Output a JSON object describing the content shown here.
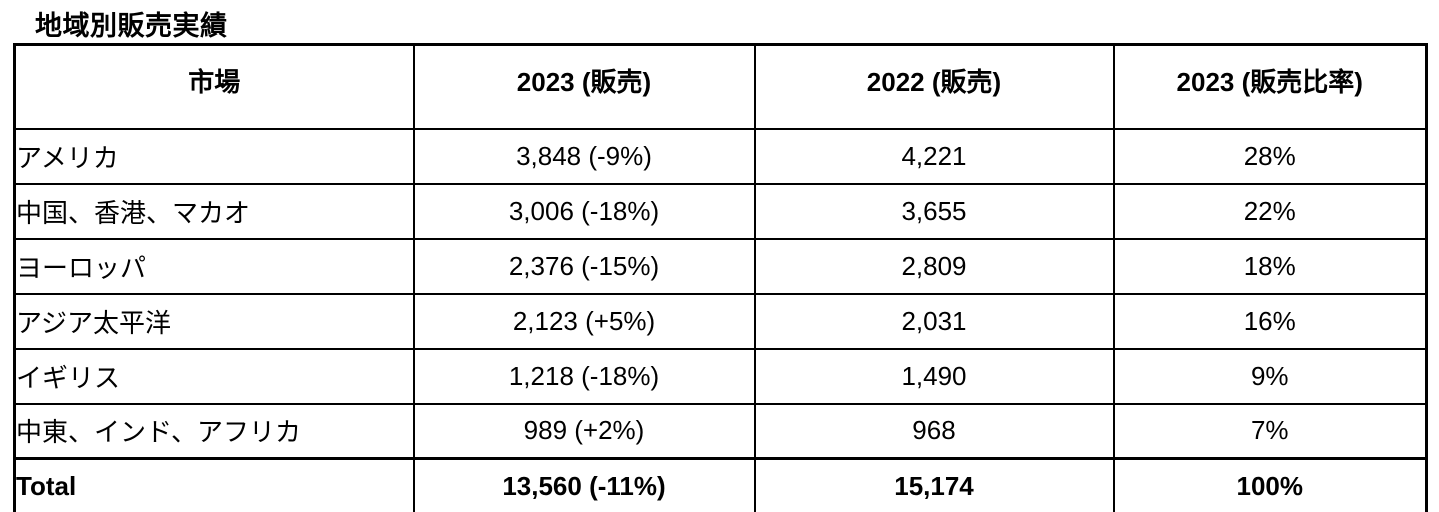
{
  "title": "地域別販売実績",
  "table": {
    "headers": [
      "市場",
      "2023 (販売)",
      "2022 (販売)",
      "2023 (販売比率)"
    ],
    "rows": [
      [
        "アメリカ",
        "3,848 (-9%)",
        "4,221",
        "28%"
      ],
      [
        "中国、香港、マカオ",
        "3,006 (-18%)",
        "3,655",
        "22%"
      ],
      [
        "ヨーロッパ",
        "2,376 (-15%)",
        "2,809",
        "18%"
      ],
      [
        "アジア太平洋",
        "2,123 (+5%)",
        "2,031",
        "16%"
      ],
      [
        "イギリス",
        "1,218 (-18%)",
        "1,490",
        "9%"
      ],
      [
        "中東、インド、アフリカ",
        "989 (+2%)",
        "968",
        "7%"
      ]
    ],
    "total_row": [
      "Total",
      "13,560 (-11%)",
      "15,174",
      "100%"
    ]
  },
  "chart_data": {
    "type": "table",
    "title": "地域別販売実績",
    "columns": [
      "市場",
      "2023 (販売)",
      "2022 (販売)",
      "2023 (販売比率)"
    ],
    "regions": [
      "アメリカ",
      "中国、香港、マカオ",
      "ヨーロッパ",
      "アジア太平洋",
      "イギリス",
      "中東、インド、アフリカ"
    ],
    "sales_2023": [
      3848,
      3006,
      2376,
      2123,
      1218,
      989
    ],
    "sales_2023_change_pct": [
      -9,
      -18,
      -15,
      5,
      -18,
      2
    ],
    "sales_2022": [
      4221,
      3655,
      2809,
      2031,
      1490,
      968
    ],
    "ratio_2023_pct": [
      28,
      22,
      18,
      16,
      9,
      7
    ],
    "total_2023": 13560,
    "total_2023_change_pct": -11,
    "total_2022": 15174,
    "total_ratio_pct": 100
  }
}
